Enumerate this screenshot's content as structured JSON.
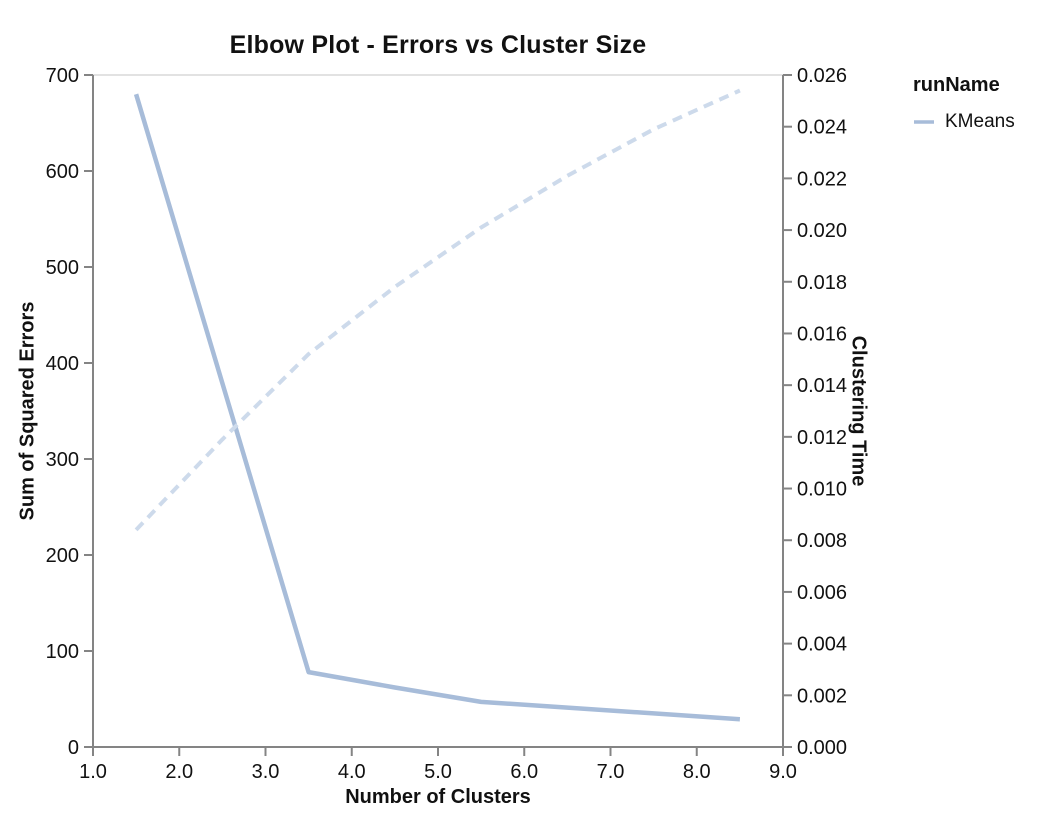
{
  "title": "Elbow Plot - Errors vs Cluster Size",
  "legend": {
    "title": "runName",
    "items": [
      {
        "label": "KMeans",
        "color": "#a7bcd9"
      }
    ]
  },
  "colors": {
    "sse_line": "#a7bcd9",
    "time_line": "#cddaeb",
    "axis": "#848484",
    "top_border": "#e2e2e2",
    "text": "#111111"
  },
  "chart_data": {
    "type": "line",
    "title": "Elbow Plot - Errors vs Cluster Size",
    "xlabel": "Number of Clusters",
    "ylabel_left": "Sum of Squared Errors",
    "ylabel_right": "Clustering Time",
    "xlim": [
      1.0,
      9.0
    ],
    "ylim_left": [
      0,
      700
    ],
    "ylim_right": [
      0.0,
      0.026
    ],
    "x_ticks": [
      "1.0",
      "2.0",
      "3.0",
      "4.0",
      "5.0",
      "6.0",
      "7.0",
      "8.0",
      "9.0"
    ],
    "y_ticks_left": [
      "0",
      "100",
      "200",
      "300",
      "400",
      "500",
      "600",
      "700"
    ],
    "y_ticks_right": [
      "0.000",
      "0.002",
      "0.004",
      "0.006",
      "0.008",
      "0.010",
      "0.012",
      "0.014",
      "0.016",
      "0.018",
      "0.020",
      "0.022",
      "0.024",
      "0.026"
    ],
    "grid": false,
    "legend_position": "top-right",
    "series": [
      {
        "name": "KMeans - Sum of Squared Errors",
        "run": "KMeans",
        "axis": "left",
        "style": "solid",
        "color": "#a7bcd9",
        "points": [
          [
            1.5,
            680
          ],
          [
            3.5,
            78
          ],
          [
            4.5,
            62
          ],
          [
            5.5,
            47
          ],
          [
            6.5,
            41
          ],
          [
            7.5,
            35
          ],
          [
            8.5,
            29
          ]
        ]
      },
      {
        "name": "KMeans - Clustering Time",
        "run": "KMeans",
        "axis": "right",
        "style": "dashed",
        "color": "#cddaeb",
        "points": [
          [
            1.5,
            0.0084
          ],
          [
            2.5,
            0.0119
          ],
          [
            3.5,
            0.0152
          ],
          [
            4.5,
            0.0178
          ],
          [
            5.5,
            0.0201
          ],
          [
            6.5,
            0.0221
          ],
          [
            7.5,
            0.0239
          ],
          [
            8.5,
            0.0254
          ]
        ]
      }
    ]
  }
}
